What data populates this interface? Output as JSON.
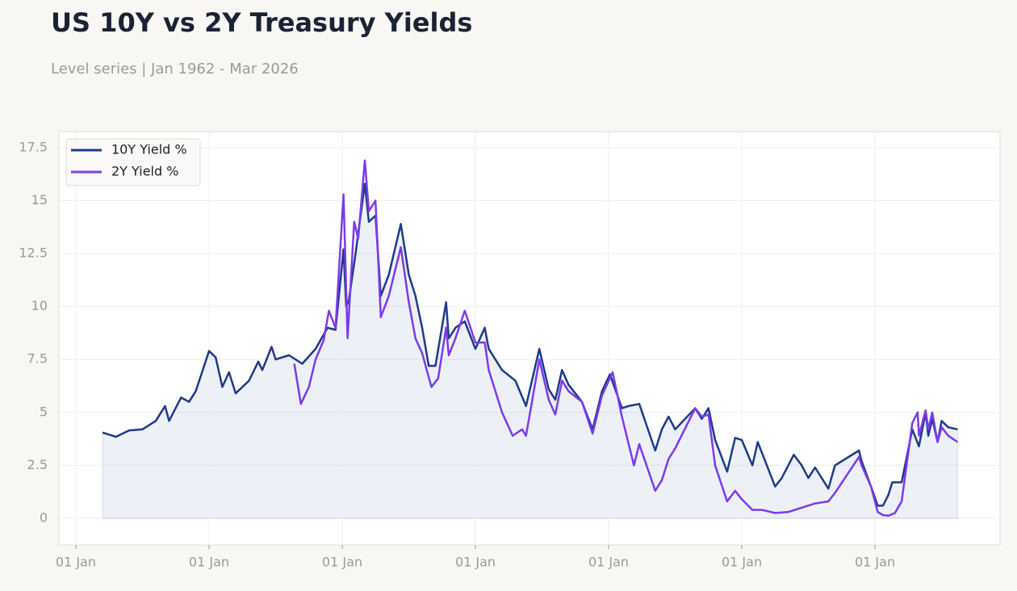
{
  "chart_data": {
    "type": "line",
    "title": "US 10Y vs 2Y Treasury Yields",
    "subtitle": "Level series | Jan 1962 - Mar 2026",
    "xlim": [
      1958.73,
      2029.39
    ],
    "xticks": [
      {
        "value": 1960,
        "label": "01 Jan"
      },
      {
        "value": 1970,
        "label": "01 Jan"
      },
      {
        "value": 1980,
        "label": "01 Jan"
      },
      {
        "value": 1990,
        "label": "01 Jan"
      },
      {
        "value": 2000,
        "label": "01 Jan"
      },
      {
        "value": 2010,
        "label": "01 Jan"
      },
      {
        "value": 2020,
        "label": "01 Jan"
      }
    ],
    "ylim": [
      -1.26,
      18.26
    ],
    "yticks": [
      0,
      2.5,
      5,
      7.5,
      10,
      12.5,
      15,
      17.5
    ],
    "grid": true,
    "legend": "upper-left",
    "area_under": "10Y Yield %",
    "series": [
      {
        "name": "10Y Yield %",
        "color": "#1e3a8a",
        "x": [
          1962.0,
          1962.5,
          1963,
          1964,
          1965,
          1966,
          1966.7,
          1967,
          1967.9,
          1968.5,
          1969,
          1970,
          1970.5,
          1971,
          1971.5,
          1972,
          1973,
          1973.7,
          1974,
          1974.7,
          1975,
          1976,
          1977,
          1978,
          1978.9,
          1979.5,
          1980.1,
          1980.3,
          1980.5,
          1981,
          1981.7,
          1982,
          1982.5,
          1982.9,
          1983.5,
          1984.4,
          1985,
          1985.5,
          1986,
          1986.5,
          1987,
          1987.8,
          1988,
          1988.5,
          1989.2,
          1990,
          1990.7,
          1991,
          1992,
          1993,
          1993.8,
          1994.8,
          1995.5,
          1996,
          1996.5,
          1997,
          1998,
          1998.8,
          1999.5,
          2000.1,
          2001,
          2001.5,
          2002.3,
          2003.5,
          2004,
          2004.5,
          2005,
          2006.5,
          2007,
          2007.5,
          2008,
          2008.9,
          2009.5,
          2010,
          2010.8,
          2011.2,
          2012.5,
          2013,
          2013.9,
          2014.5,
          2015,
          2015.5,
          2016.5,
          2017,
          2018.8,
          2019,
          2019.7,
          2020.2,
          2020.6,
          2021,
          2021.3,
          2022,
          2022.8,
          2023.3,
          2023.8,
          2024,
          2024.3,
          2024.7,
          2025,
          2025.5,
          2026.2
        ],
        "values": [
          4.05,
          3.95,
          3.85,
          4.15,
          4.2,
          4.6,
          5.3,
          4.6,
          5.7,
          5.5,
          6.0,
          7.9,
          7.6,
          6.2,
          6.9,
          5.9,
          6.5,
          7.4,
          7.0,
          8.1,
          7.5,
          7.7,
          7.3,
          8.0,
          9.0,
          8.9,
          12.7,
          10.0,
          10.3,
          12.5,
          15.8,
          14.0,
          14.3,
          10.5,
          11.5,
          13.9,
          11.5,
          10.5,
          9.0,
          7.2,
          7.2,
          10.2,
          8.5,
          9.0,
          9.3,
          8.0,
          9.0,
          8.0,
          7.0,
          6.5,
          5.3,
          8.0,
          6.1,
          5.6,
          7.0,
          6.3,
          5.5,
          4.2,
          6.0,
          6.8,
          5.2,
          5.3,
          5.4,
          3.2,
          4.2,
          4.8,
          4.2,
          5.2,
          4.7,
          5.2,
          3.7,
          2.2,
          3.8,
          3.7,
          2.5,
          3.6,
          1.5,
          1.9,
          3.0,
          2.5,
          1.9,
          2.4,
          1.4,
          2.5,
          3.2,
          2.7,
          1.5,
          0.6,
          0.6,
          1.1,
          1.7,
          1.7,
          4.2,
          3.4,
          5.0,
          3.9,
          4.7,
          3.6,
          4.6,
          4.3,
          4.2
        ]
      },
      {
        "name": "2Y Yield %",
        "color": "#7c3aed",
        "x": [
          1976.4,
          1976.9,
          1977.5,
          1978,
          1978.6,
          1979,
          1979.5,
          1980.1,
          1980.4,
          1980.9,
          1981.2,
          1981.7,
          1982,
          1982.5,
          1982.9,
          1983.5,
          1984.4,
          1985,
          1985.5,
          1986,
          1986.7,
          1987.2,
          1987.8,
          1988,
          1988.5,
          1989.2,
          1990,
          1990.7,
          1991,
          1992,
          1992.8,
          1993.5,
          1993.8,
          1994.8,
          1995.5,
          1996,
          1996.5,
          1997,
          1998,
          1998.8,
          1999.5,
          2000.3,
          2001,
          2001.9,
          2002.3,
          2003.5,
          2004,
          2004.5,
          2005,
          2006.5,
          2007,
          2007.5,
          2008,
          2008.9,
          2009.5,
          2010,
          2010.8,
          2011.5,
          2012.5,
          2013.5,
          2014.5,
          2015.5,
          2016.5,
          2017,
          2018.8,
          2019,
          2019.7,
          2020.2,
          2020.6,
          2021,
          2021.5,
          2022,
          2022.8,
          2023.2,
          2023.3,
          2023.8,
          2024,
          2024.3,
          2024.7,
          2025,
          2025.5,
          2026.2
        ],
        "values": [
          7.3,
          5.4,
          6.2,
          7.5,
          8.4,
          9.8,
          9.0,
          15.3,
          8.5,
          14.0,
          13.2,
          16.9,
          14.5,
          15.0,
          9.5,
          10.5,
          12.8,
          10.2,
          8.5,
          7.8,
          6.2,
          6.6,
          9.0,
          7.7,
          8.5,
          9.8,
          8.3,
          8.3,
          7.0,
          5.0,
          3.9,
          4.2,
          3.9,
          7.5,
          5.6,
          4.9,
          6.5,
          6.0,
          5.5,
          4.0,
          5.8,
          6.9,
          4.8,
          2.5,
          3.5,
          1.3,
          1.8,
          2.8,
          3.3,
          5.2,
          4.8,
          4.9,
          2.5,
          0.8,
          1.3,
          0.9,
          0.4,
          0.4,
          0.25,
          0.3,
          0.5,
          0.7,
          0.8,
          1.2,
          2.9,
          2.5,
          1.5,
          0.3,
          0.15,
          0.12,
          0.25,
          0.8,
          4.5,
          5.0,
          3.9,
          5.1,
          4.2,
          5.0,
          3.6,
          4.3,
          3.9,
          3.6
        ]
      }
    ]
  }
}
